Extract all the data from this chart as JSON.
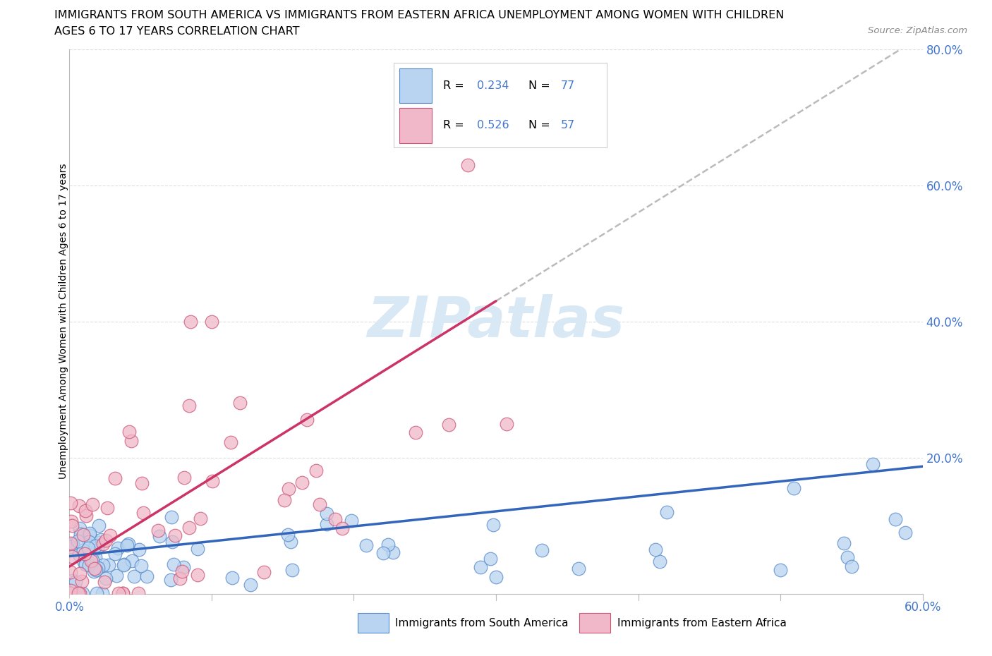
{
  "title_line1": "IMMIGRANTS FROM SOUTH AMERICA VS IMMIGRANTS FROM EASTERN AFRICA UNEMPLOYMENT AMONG WOMEN WITH CHILDREN",
  "title_line2": "AGES 6 TO 17 YEARS CORRELATION CHART",
  "source": "Source: ZipAtlas.com",
  "ylabel": "Unemployment Among Women with Children Ages 6 to 17 years",
  "xmin": 0.0,
  "xmax": 0.6,
  "ymin": 0.0,
  "ymax": 0.8,
  "R_south": 0.234,
  "N_south": 77,
  "R_east": 0.526,
  "N_east": 57,
  "color_south_face": "#b8d4f0",
  "color_east_face": "#f0b8c8",
  "color_south_edge": "#5588cc",
  "color_east_edge": "#cc5577",
  "color_south_line": "#3366bb",
  "color_east_line": "#cc3366",
  "color_dash_line": "#bbbbbb",
  "watermark_color": "#d8e8f5",
  "legend_text_color": "#4477cc",
  "source_color": "#888888"
}
